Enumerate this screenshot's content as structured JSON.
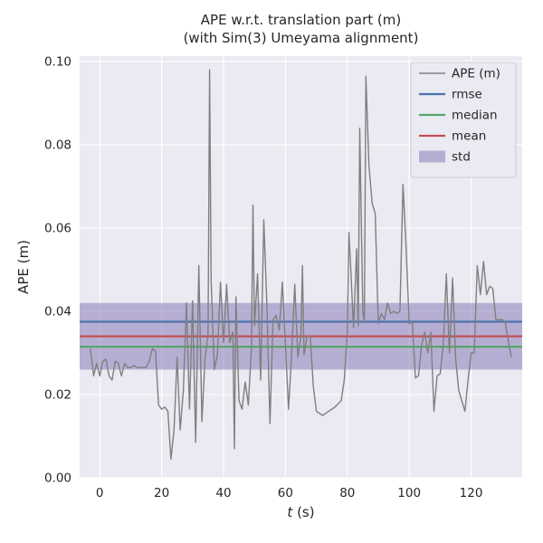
{
  "labels": {
    "xlabel_var": "t",
    "xlabel_unit": " (s)"
  },
  "chart_data": {
    "type": "line",
    "title": "APE w.r.t. translation part (m)",
    "subtitle": "(with Sim(3) Umeyama alignment)",
    "xlabel": "t (s)",
    "ylabel": "APE (m)",
    "xlim": [
      -6.5,
      136.5
    ],
    "ylim": [
      0.0,
      0.1013
    ],
    "xticks": [
      0,
      20,
      40,
      60,
      80,
      100,
      120
    ],
    "yticks": [
      0.0,
      0.02,
      0.04,
      0.06,
      0.08,
      0.1
    ],
    "grid": true,
    "legend_position": "upper right",
    "background_color": "#eaeaf2",
    "grid_color": "#ffffff",
    "text_color": "#262626",
    "stats": {
      "rmse": 0.0375,
      "mean": 0.034,
      "median": 0.0315,
      "std": 0.008
    },
    "series": [
      {
        "name": "APE (m)",
        "type": "line",
        "color": "#7f7f7f",
        "points": [
          [
            -3,
            0.031
          ],
          [
            -2,
            0.0245
          ],
          [
            -1,
            0.0275
          ],
          [
            0,
            0.0245
          ],
          [
            1,
            0.028
          ],
          [
            2,
            0.0285
          ],
          [
            3,
            0.0245
          ],
          [
            4,
            0.0235
          ],
          [
            5,
            0.028
          ],
          [
            6,
            0.0275
          ],
          [
            7,
            0.0245
          ],
          [
            8,
            0.0275
          ],
          [
            9,
            0.0265
          ],
          [
            10,
            0.0265
          ],
          [
            11,
            0.027
          ],
          [
            12,
            0.0265
          ],
          [
            13,
            0.0265
          ],
          [
            14,
            0.0265
          ],
          [
            15,
            0.0265
          ],
          [
            16,
            0.028
          ],
          [
            17,
            0.031
          ],
          [
            18,
            0.0305
          ],
          [
            19,
            0.0175
          ],
          [
            20,
            0.0165
          ],
          [
            21,
            0.017
          ],
          [
            22,
            0.016
          ],
          [
            23,
            0.0045
          ],
          [
            24,
            0.0115
          ],
          [
            25,
            0.029
          ],
          [
            26,
            0.0115
          ],
          [
            27,
            0.021
          ],
          [
            28,
            0.042
          ],
          [
            29,
            0.0165
          ],
          [
            30,
            0.0425
          ],
          [
            31,
            0.0085
          ],
          [
            32,
            0.051
          ],
          [
            33,
            0.0135
          ],
          [
            34,
            0.0285
          ],
          [
            35,
            0.0345
          ],
          [
            35.5,
            0.098
          ],
          [
            36,
            0.0475
          ],
          [
            37,
            0.026
          ],
          [
            38,
            0.0295
          ],
          [
            39,
            0.047
          ],
          [
            40,
            0.0325
          ],
          [
            41,
            0.0465
          ],
          [
            42,
            0.0325
          ],
          [
            43,
            0.035
          ],
          [
            43.5,
            0.007
          ],
          [
            44,
            0.0435
          ],
          [
            45,
            0.0185
          ],
          [
            46,
            0.0165
          ],
          [
            47,
            0.023
          ],
          [
            48,
            0.0175
          ],
          [
            49,
            0.031
          ],
          [
            49.5,
            0.0655
          ],
          [
            50,
            0.0365
          ],
          [
            51,
            0.049
          ],
          [
            52,
            0.0235
          ],
          [
            53,
            0.062
          ],
          [
            54,
            0.0415
          ],
          [
            55,
            0.013
          ],
          [
            56,
            0.038
          ],
          [
            57,
            0.039
          ],
          [
            58,
            0.0355
          ],
          [
            59,
            0.047
          ],
          [
            60,
            0.032
          ],
          [
            61,
            0.0165
          ],
          [
            62,
            0.0295
          ],
          [
            63,
            0.0465
          ],
          [
            64,
            0.029
          ],
          [
            65,
            0.034
          ],
          [
            65.5,
            0.051
          ],
          [
            66,
            0.0295
          ],
          [
            67,
            0.034
          ],
          [
            68,
            0.034
          ],
          [
            69,
            0.022
          ],
          [
            70,
            0.016
          ],
          [
            71,
            0.0155
          ],
          [
            72,
            0.015
          ],
          [
            74,
            0.016
          ],
          [
            76,
            0.017
          ],
          [
            78,
            0.0185
          ],
          [
            79,
            0.0235
          ],
          [
            80,
            0.035
          ],
          [
            80.5,
            0.059
          ],
          [
            81,
            0.052
          ],
          [
            82,
            0.036
          ],
          [
            83,
            0.055
          ],
          [
            83.5,
            0.0365
          ],
          [
            84,
            0.084
          ],
          [
            85,
            0.04
          ],
          [
            85.5,
            0.0375
          ],
          [
            86,
            0.0965
          ],
          [
            87,
            0.075
          ],
          [
            88,
            0.066
          ],
          [
            89,
            0.0635
          ],
          [
            90,
            0.037
          ],
          [
            91,
            0.0395
          ],
          [
            92,
            0.038
          ],
          [
            93,
            0.042
          ],
          [
            94,
            0.0395
          ],
          [
            95,
            0.04
          ],
          [
            96,
            0.0395
          ],
          [
            97,
            0.04
          ],
          [
            98,
            0.0705
          ],
          [
            99,
            0.055
          ],
          [
            100,
            0.037
          ],
          [
            101,
            0.0375
          ],
          [
            102,
            0.024
          ],
          [
            103,
            0.0245
          ],
          [
            104,
            0.032
          ],
          [
            105,
            0.035
          ],
          [
            106,
            0.03
          ],
          [
            107,
            0.035
          ],
          [
            108,
            0.016
          ],
          [
            109,
            0.0245
          ],
          [
            110,
            0.025
          ],
          [
            111,
            0.032
          ],
          [
            112,
            0.049
          ],
          [
            113,
            0.03
          ],
          [
            114,
            0.048
          ],
          [
            115,
            0.0285
          ],
          [
            116,
            0.021
          ],
          [
            117,
            0.0185
          ],
          [
            118,
            0.016
          ],
          [
            119,
            0.0235
          ],
          [
            120,
            0.03
          ],
          [
            121,
            0.03
          ],
          [
            122,
            0.051
          ],
          [
            123,
            0.044
          ],
          [
            124,
            0.052
          ],
          [
            125,
            0.044
          ],
          [
            126,
            0.046
          ],
          [
            127,
            0.0455
          ],
          [
            128,
            0.038
          ],
          [
            129,
            0.038
          ],
          [
            130,
            0.038
          ],
          [
            131,
            0.0375
          ],
          [
            132,
            0.033
          ],
          [
            133,
            0.029
          ]
        ]
      },
      {
        "name": "rmse",
        "type": "hline",
        "color": "#4c72b0",
        "value": 0.0375
      },
      {
        "name": "median",
        "type": "hline",
        "color": "#55a868",
        "value": 0.0315
      },
      {
        "name": "mean",
        "type": "hline",
        "color": "#c44e52",
        "value": 0.034
      },
      {
        "name": "std",
        "type": "band",
        "color": "#8172b2",
        "opacity": 0.5,
        "min": 0.026,
        "max": 0.042
      }
    ]
  }
}
